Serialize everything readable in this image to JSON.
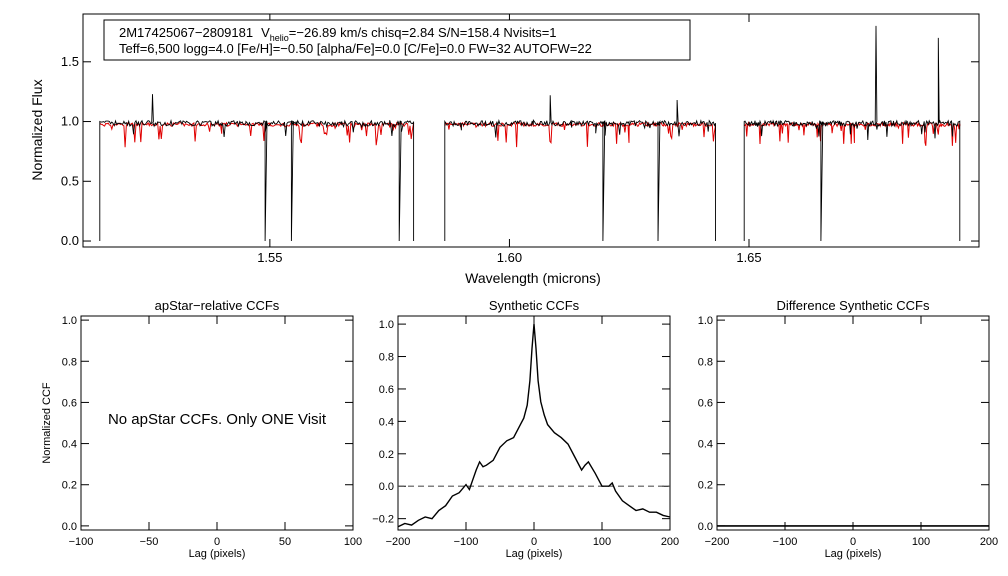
{
  "info": {
    "line1_id": "2M17425067−2809181",
    "line1_v": "V",
    "line1_sub": "helio",
    "line1_rest": "=−26.89 km/s  chisq=2.84  S/N=158.4  Nvisits=1",
    "line2": "Teff=6,500 logg=4.0 [Fe/H]=−0.50 [alpha/Fe]=0.0 [C/Fe]=0.0 FW=32 AUTOFW=22"
  },
  "colors": {
    "observed": "#000000",
    "model": "#e00000",
    "zero_line": "#555555"
  },
  "note": "No apStar CCFs.  Only ONE Visit",
  "chart_data": [
    {
      "type": "line",
      "xlabel": "Wavelength (microns)",
      "ylabel": "Normalized Flux",
      "xlim": [
        1.511,
        1.698
      ],
      "ylim": [
        -0.05,
        1.9
      ],
      "x_ticks": [
        "1.55",
        "1.60",
        "1.65"
      ],
      "x_tick_values": [
        1.55,
        1.6,
        1.65
      ],
      "y_ticks": [
        "0.0",
        "0.5",
        "1.0",
        "1.5"
      ],
      "y_tick_values": [
        0.0,
        0.5,
        1.0,
        1.5
      ],
      "segments_microns": [
        [
          1.5145,
          1.58
        ],
        [
          1.5865,
          1.643
        ],
        [
          1.649,
          1.694
        ]
      ],
      "series": [
        {
          "x": [
            1.5145,
            1.52,
            1.5255,
            1.53,
            1.535,
            1.54,
            1.545,
            1.549,
            1.5545,
            1.5555,
            1.56,
            1.565,
            1.57,
            1.575,
            1.577,
            1.58,
            1.5865,
            1.59,
            1.595,
            1.6,
            1.605,
            1.6085,
            1.613,
            1.618,
            1.6195,
            1.625,
            1.63,
            1.631,
            1.635,
            1.64,
            1.643,
            1.649,
            1.655,
            1.66,
            1.665,
            1.667,
            1.672,
            1.6765,
            1.68,
            1.685,
            1.6895,
            1.694
          ],
          "y": [
            1.0,
            0.99,
            1.23,
            0.98,
            1.0,
            0.99,
            1.0,
            0.0,
            0.0,
            1.0,
            0.99,
            1.0,
            0.96,
            1.01,
            0.0,
            1.0,
            1.0,
            0.98,
            1.0,
            0.97,
            1.01,
            1.22,
            0.95,
            0.98,
            0.0,
            0.97,
            1.0,
            0.0,
            1.18,
            1.0,
            0.9,
            1.0,
            0.99,
            0.98,
            0.0,
            1.0,
            0.95,
            1.8,
            0.97,
            0.99,
            1.7,
            0.97
          ]
        },
        {
          "x": [
            1.5145,
            1.525,
            1.54,
            1.55,
            1.56,
            1.575,
            1.58,
            1.5865,
            1.595,
            1.605,
            1.615,
            1.625,
            1.635,
            1.643,
            1.649,
            1.66,
            1.672,
            1.68,
            1.69,
            1.694
          ],
          "y": [
            1.0,
            0.99,
            0.99,
            0.97,
            0.99,
            0.95,
            0.99,
            1.0,
            0.99,
            0.98,
            0.98,
            0.99,
            0.98,
            0.92,
            1.0,
            0.98,
            0.82,
            0.97,
            0.97,
            0.96
          ]
        }
      ]
    },
    {
      "type": "line",
      "title": "apStar−relative CCFs",
      "xlabel": "Lag (pixels)",
      "ylabel": "Normalized CCF",
      "xlim": [
        -100,
        100
      ],
      "ylim": [
        -0.02,
        1.02
      ],
      "x_ticks": [
        "−100",
        "−50",
        "0",
        "50",
        "100"
      ],
      "x_tick_values": [
        -100,
        -50,
        0,
        50,
        100
      ],
      "y_ticks": [
        "0.0",
        "0.2",
        "0.4",
        "0.6",
        "0.8",
        "1.0"
      ],
      "y_tick_values": [
        0.0,
        0.2,
        0.4,
        0.6,
        0.8,
        1.0
      ],
      "series": []
    },
    {
      "type": "line",
      "title": "Synthetic CCFs",
      "xlabel": "Lag (pixels)",
      "xlim": [
        -200,
        200
      ],
      "ylim": [
        -0.27,
        1.05
      ],
      "x_ticks": [
        "−200",
        "−100",
        "0",
        "100",
        "200"
      ],
      "x_tick_values": [
        -200,
        -100,
        0,
        100,
        200
      ],
      "y_ticks": [
        "−0.2",
        "0.0",
        "0.2",
        "0.4",
        "0.6",
        "0.8",
        "1.0"
      ],
      "y_tick_values": [
        -0.2,
        0.0,
        0.2,
        0.4,
        0.6,
        0.8,
        1.0
      ],
      "series": [
        {
          "x": [
            -200,
            -190,
            -180,
            -170,
            -160,
            -150,
            -140,
            -130,
            -120,
            -110,
            -100,
            -95,
            -90,
            -85,
            -80,
            -75,
            -70,
            -60,
            -50,
            -40,
            -30,
            -20,
            -15,
            -10,
            -6,
            -3,
            0,
            3,
            6,
            10,
            15,
            20,
            30,
            40,
            50,
            60,
            70,
            75,
            80,
            90,
            100,
            110,
            115,
            120,
            130,
            140,
            150,
            160,
            170,
            180,
            190,
            200
          ],
          "y": [
            -0.25,
            -0.23,
            -0.24,
            -0.21,
            -0.19,
            -0.2,
            -0.15,
            -0.12,
            -0.06,
            -0.04,
            0.01,
            -0.02,
            0.04,
            0.1,
            0.15,
            0.12,
            0.13,
            0.16,
            0.24,
            0.28,
            0.3,
            0.38,
            0.42,
            0.5,
            0.65,
            0.85,
            1.0,
            0.85,
            0.65,
            0.52,
            0.44,
            0.38,
            0.33,
            0.3,
            0.26,
            0.18,
            0.1,
            0.13,
            0.15,
            0.08,
            0.0,
            0.0,
            0.02,
            -0.03,
            -0.09,
            -0.12,
            -0.15,
            -0.14,
            -0.16,
            -0.16,
            -0.18,
            -0.19
          ]
        },
        {
          "x": [
            -200,
            200
          ],
          "y": [
            0.0,
            0.0
          ]
        }
      ]
    },
    {
      "type": "line",
      "title": "Difference Synthetic CCFs",
      "xlabel": "Lag (pixels)",
      "xlim": [
        -200,
        200
      ],
      "ylim": [
        -0.02,
        1.02
      ],
      "x_ticks": [
        "−200",
        "−100",
        "0",
        "100",
        "200"
      ],
      "x_tick_values": [
        -200,
        -100,
        0,
        100,
        200
      ],
      "y_ticks": [
        "0.0",
        "0.2",
        "0.4",
        "0.6",
        "0.8",
        "1.0"
      ],
      "y_tick_values": [
        0.0,
        0.2,
        0.4,
        0.6,
        0.8,
        1.0
      ],
      "series": [
        {
          "x": [
            -200,
            200
          ],
          "y": [
            0.0,
            0.0
          ]
        }
      ]
    }
  ]
}
